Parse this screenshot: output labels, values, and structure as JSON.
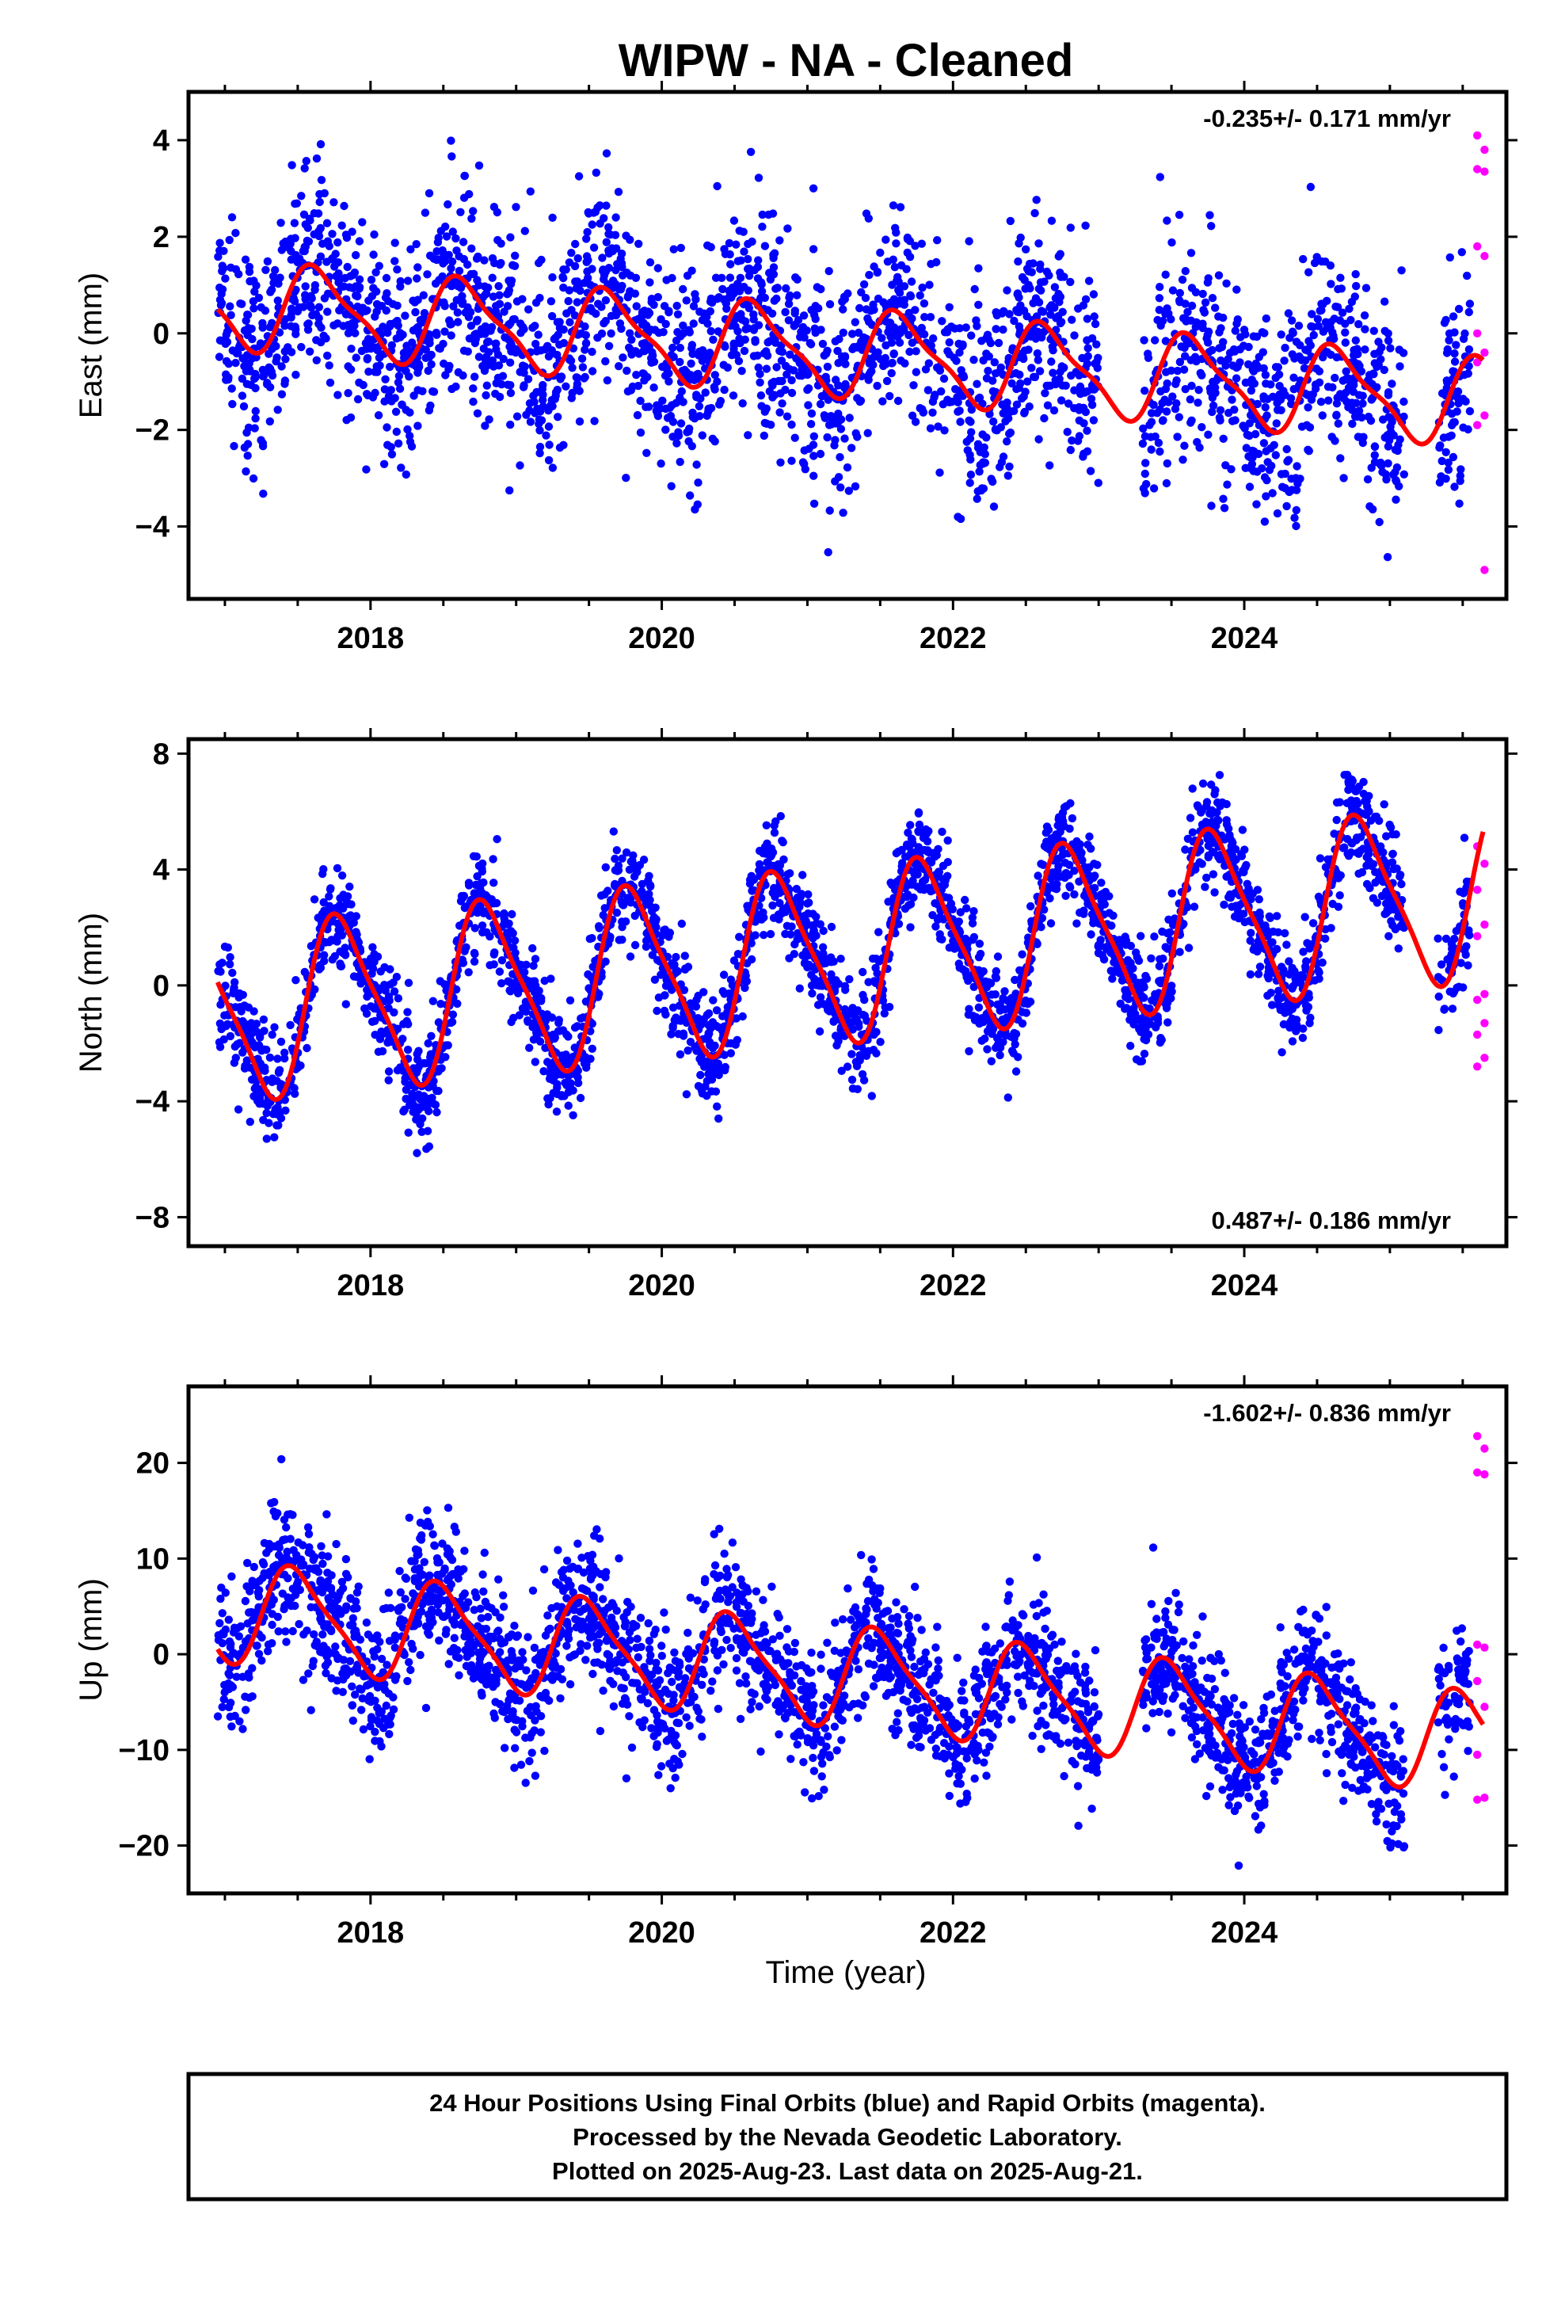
{
  "figure": {
    "title": "WIPW  - NA - Cleaned",
    "xlabel": "Time (year)",
    "caption_lines": [
      "24 Hour Positions Using Final Orbits (blue) and Rapid Orbits (magenta).",
      "Processed by the Nevada Geodetic Laboratory.",
      "Plotted on 2025-Aug-23. Last data on 2025-Aug-21."
    ]
  },
  "colors": {
    "final_orbits": "#0000ff",
    "rapid_orbits": "#ff00ff",
    "model_fit": "#ff0000",
    "frame": "#000000"
  },
  "chart_data": [
    {
      "type": "scatter",
      "ylabel": "East (mm)",
      "rate_text": "-0.235+/- 0.171 mm/yr",
      "rate_position": "top-right",
      "xlim": [
        2016.75,
        2025.8
      ],
      "ylim": [
        -5.5,
        5.0
      ],
      "x_ticks": [
        2018,
        2020,
        2022,
        2024
      ],
      "y_ticks": [
        4,
        2,
        0,
        -2,
        -4
      ],
      "grid": false,
      "series": [
        {
          "role": "final",
          "color": "#0000ff",
          "x_range": [
            2016.95,
            2025.55
          ],
          "trend_mm_per_yr": -0.235,
          "intercept": 0.6,
          "annual_amp": 0.85,
          "annual_phase": 0.6,
          "semiannual_amp": 0.25,
          "scatter_sd": 1.1,
          "n_points": 2900,
          "gaps": [
            [
              2023.0,
              2023.3
            ],
            [
              2025.1,
              2025.33
            ]
          ]
        },
        {
          "role": "rapid",
          "color": "#ff00ff",
          "x_range": [
            2025.6,
            2025.65
          ],
          "values": [
            4.1,
            3.8,
            3.4,
            3.35,
            1.8,
            1.6,
            0.0,
            -0.4,
            -0.6,
            -1.7,
            -1.9,
            -4.9
          ]
        }
      ],
      "model": {
        "color": "#ff0000",
        "x_range": [
          2016.95,
          2025.64
        ],
        "trend_mm_per_yr": -0.235,
        "intercept": 0.6,
        "annual_amp": 0.85,
        "annual_phase": 0.6,
        "semiannual_amp": 0.25
      }
    },
    {
      "type": "scatter",
      "ylabel": "North (mm)",
      "rate_text": "0.487+/- 0.186 mm/yr",
      "rate_position": "bottom-right",
      "xlim": [
        2016.75,
        2025.8
      ],
      "ylim": [
        -9.0,
        8.5
      ],
      "x_ticks": [
        2018,
        2020,
        2022,
        2024
      ],
      "y_ticks": [
        8,
        4,
        0,
        -4,
        -8
      ],
      "grid": false,
      "series": [
        {
          "role": "final",
          "color": "#0000ff",
          "x_range": [
            2016.95,
            2025.55
          ],
          "trend_mm_per_yr": 0.487,
          "intercept": -1.0,
          "annual_amp": 2.9,
          "annual_phase": 0.45,
          "semiannual_amp": 0.6,
          "scatter_sd": 0.9,
          "n_points": 2900,
          "gaps": [
            [
              2025.1,
              2025.33
            ]
          ]
        },
        {
          "role": "rapid",
          "color": "#ff00ff",
          "x_range": [
            2025.6,
            2025.65
          ],
          "values": [
            4.8,
            4.2,
            3.3,
            2.1,
            1.7,
            -0.3,
            -0.5,
            -1.3,
            -1.7,
            -2.5,
            -2.8
          ]
        }
      ],
      "model": {
        "color": "#ff0000",
        "x_range": [
          2016.95,
          2025.64
        ],
        "trend_mm_per_yr": 0.487,
        "intercept": -1.0,
        "annual_amp": 2.9,
        "annual_phase": 0.45,
        "semiannual_amp": 0.6
      }
    },
    {
      "type": "scatter",
      "ylabel": "Up (mm)",
      "rate_text": "-1.602+/- 0.836 mm/yr",
      "rate_position": "top-right",
      "xlim": [
        2016.75,
        2025.8
      ],
      "ylim": [
        -25,
        28
      ],
      "x_ticks": [
        2018,
        2020,
        2022,
        2024
      ],
      "y_ticks": [
        20,
        10,
        0,
        -10,
        -20
      ],
      "grid": false,
      "series": [
        {
          "role": "final",
          "color": "#0000ff",
          "x_range": [
            2016.95,
            2025.55
          ],
          "trend_mm_per_yr": -1.602,
          "intercept": 4.5,
          "annual_amp": 5.0,
          "annual_phase": 0.75,
          "semiannual_amp": 1.2,
          "scatter_sd": 3.6,
          "n_points": 2900,
          "gaps": [
            [
              2023.0,
              2023.3
            ],
            [
              2025.1,
              2025.33
            ]
          ]
        },
        {
          "role": "rapid",
          "color": "#ff00ff",
          "x_range": [
            2025.6,
            2025.65
          ],
          "values": [
            22.8,
            21.5,
            19.0,
            18.8,
            1.0,
            0.7,
            -2.8,
            -5.5,
            -10.5,
            -15.0,
            -15.2
          ]
        }
      ],
      "model": {
        "color": "#ff0000",
        "x_range": [
          2016.95,
          2025.64
        ],
        "trend_mm_per_yr": -1.602,
        "intercept": 4.5,
        "annual_amp": 5.0,
        "annual_phase": 0.75,
        "semiannual_amp": 1.2
      }
    }
  ]
}
